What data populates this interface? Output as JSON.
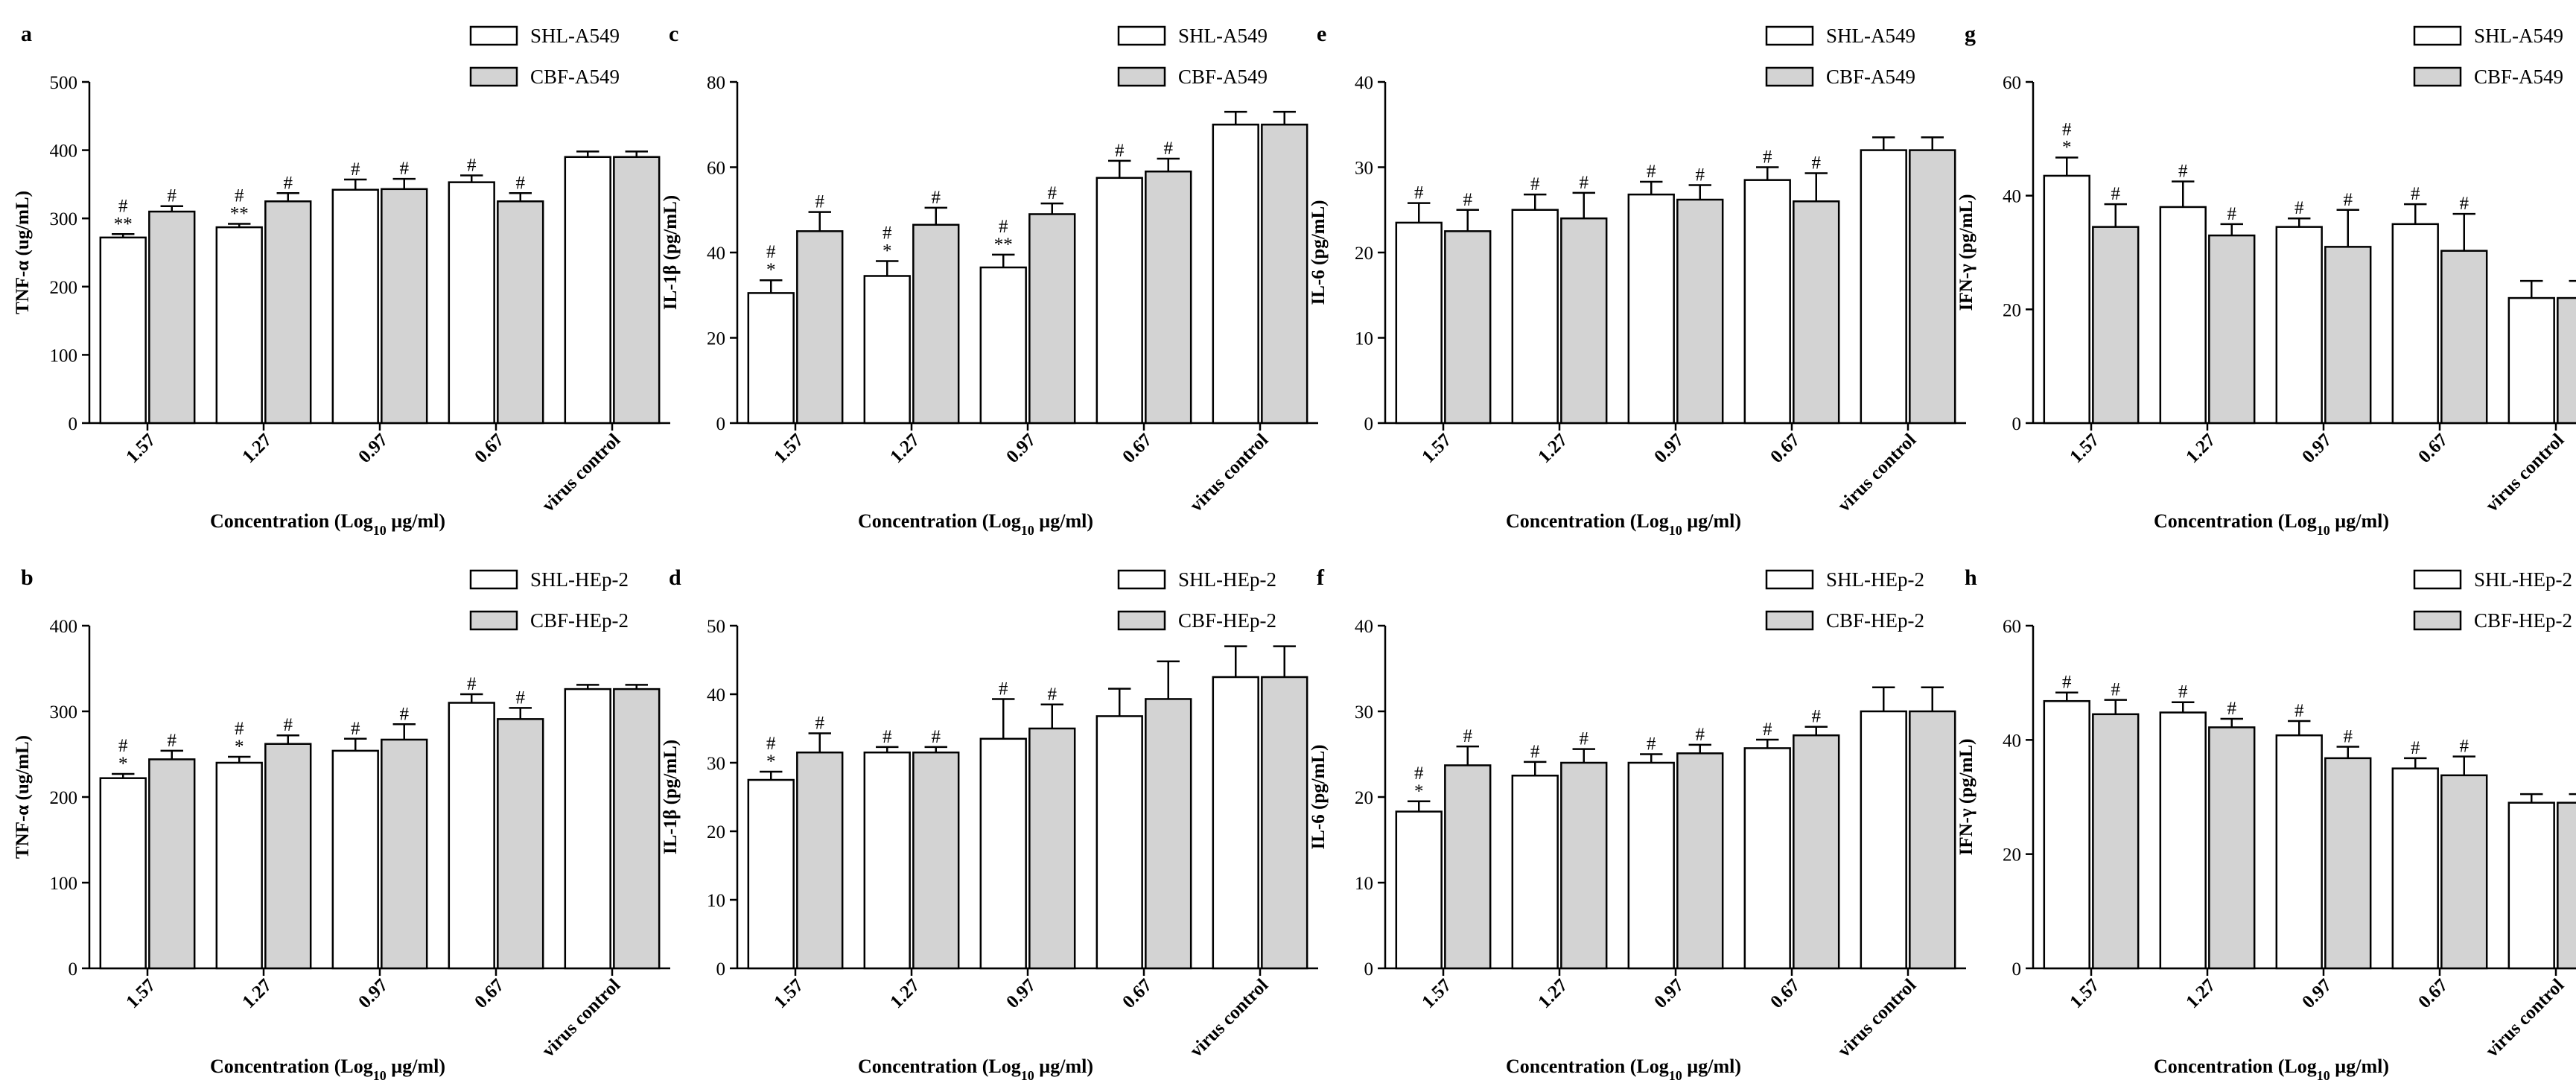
{
  "figure": {
    "xlabel_main": "Concentration (Log",
    "xlabel_sub": "10",
    "xlabel_unit": " µg/ml)"
  },
  "chart_data": [
    {
      "type": "bar",
      "panel": "a",
      "ylabel": "TNF-α  (ug/mL)",
      "ylim": [
        0,
        500
      ],
      "yticks": [
        0,
        100,
        200,
        300,
        400,
        500
      ],
      "categories": [
        "1.57",
        "1.27",
        "0.97",
        "0.67",
        "virus control"
      ],
      "series": [
        {
          "name": "SHL-A549",
          "color": "#ffffff",
          "values": [
            272,
            287,
            342,
            353,
            390
          ],
          "errors": [
            5,
            5,
            15,
            10,
            8
          ],
          "marks": [
            [
              "#",
              "**"
            ],
            [
              "#",
              "**"
            ],
            [
              "#"
            ],
            [
              "#"
            ],
            []
          ]
        },
        {
          "name": "CBF-A549",
          "color": "#d3d3d3",
          "values": [
            310,
            325,
            343,
            325,
            390
          ],
          "errors": [
            8,
            12,
            15,
            12,
            8
          ],
          "marks": [
            [
              "#"
            ],
            [
              "#"
            ],
            [
              "#"
            ],
            [
              "#"
            ],
            []
          ]
        }
      ]
    },
    {
      "type": "bar",
      "panel": "b",
      "ylabel": "TNF-α  (ug/mL)",
      "ylim": [
        0,
        400
      ],
      "yticks": [
        0,
        100,
        200,
        300,
        400
      ],
      "categories": [
        "1.57",
        "1.27",
        "0.97",
        "0.67",
        "virus control"
      ],
      "series": [
        {
          "name": "SHL-HEp-2",
          "color": "#ffffff",
          "values": [
            222,
            240,
            254,
            310,
            326
          ],
          "errors": [
            5,
            7,
            14,
            10,
            5
          ],
          "marks": [
            [
              "#",
              "*"
            ],
            [
              "#",
              "*"
            ],
            [
              "#"
            ],
            [
              "#"
            ],
            []
          ]
        },
        {
          "name": "CBF-HEp-2",
          "color": "#d3d3d3",
          "values": [
            244,
            262,
            267,
            291,
            326
          ],
          "errors": [
            10,
            10,
            18,
            13,
            5
          ],
          "marks": [
            [
              "#"
            ],
            [
              "#"
            ],
            [
              "#"
            ],
            [
              "#"
            ],
            []
          ]
        }
      ]
    },
    {
      "type": "bar",
      "panel": "c",
      "ylabel": "IL-1β (pg/mL)",
      "ylim": [
        0,
        80
      ],
      "yticks": [
        0,
        20,
        40,
        60,
        80
      ],
      "categories": [
        "1.57",
        "1.27",
        "0.97",
        "0.67",
        "virus control"
      ],
      "series": [
        {
          "name": "SHL-A549",
          "color": "#ffffff",
          "values": [
            30.5,
            34.5,
            36.5,
            57.5,
            70
          ],
          "errors": [
            3,
            3.5,
            3,
            4,
            3
          ],
          "marks": [
            [
              "#",
              "*"
            ],
            [
              "#",
              "*"
            ],
            [
              "#",
              "**"
            ],
            [
              "#"
            ],
            []
          ]
        },
        {
          "name": "CBF-A549",
          "color": "#d3d3d3",
          "values": [
            45,
            46.5,
            49,
            59,
            70
          ],
          "errors": [
            4.5,
            4,
            2.5,
            3,
            3
          ],
          "marks": [
            [
              "#"
            ],
            [
              "#"
            ],
            [
              "#"
            ],
            [
              "#"
            ],
            []
          ]
        }
      ]
    },
    {
      "type": "bar",
      "panel": "d",
      "ylabel": "IL-1β (pg/mL)",
      "ylim": [
        0,
        50
      ],
      "yticks": [
        0,
        10,
        20,
        30,
        40,
        50
      ],
      "categories": [
        "1.57",
        "1.27",
        "0.97",
        "0.67",
        "virus control"
      ],
      "series": [
        {
          "name": "SHL-HEp-2",
          "color": "#ffffff",
          "values": [
            27.5,
            31.5,
            33.5,
            36.8,
            42.5
          ],
          "errors": [
            1.2,
            0.8,
            5.8,
            4,
            4.5
          ],
          "marks": [
            [
              "#",
              "*"
            ],
            [
              "#"
            ],
            [
              "#"
            ],
            [],
            []
          ]
        },
        {
          "name": "CBF-HEp-2",
          "color": "#d3d3d3",
          "values": [
            31.5,
            31.5,
            35,
            39.3,
            42.5
          ],
          "errors": [
            2.8,
            0.8,
            3.5,
            5.5,
            4.5
          ],
          "marks": [
            [
              "#"
            ],
            [
              "#"
            ],
            [
              "#"
            ],
            [],
            []
          ]
        }
      ]
    },
    {
      "type": "bar",
      "panel": "e",
      "ylabel": "IL-6 (pg/mL)",
      "ylim": [
        0,
        40
      ],
      "yticks": [
        0,
        10,
        20,
        30,
        40
      ],
      "categories": [
        "1.57",
        "1.27",
        "0.97",
        "0.67",
        "virus control"
      ],
      "series": [
        {
          "name": "SHL-A549",
          "color": "#ffffff",
          "values": [
            23.5,
            25,
            26.8,
            28.5,
            32
          ],
          "errors": [
            2.3,
            1.8,
            1.5,
            1.5,
            1.5
          ],
          "marks": [
            [
              "#"
            ],
            [
              "#"
            ],
            [
              "#"
            ],
            [
              "#"
            ],
            []
          ]
        },
        {
          "name": "CBF-A549",
          "color": "#d3d3d3",
          "values": [
            22.5,
            24,
            26.2,
            26,
            32
          ],
          "errors": [
            2.5,
            3,
            1.7,
            3.3,
            1.5
          ],
          "marks": [
            [
              "#"
            ],
            [
              "#"
            ],
            [
              "#"
            ],
            [
              "#"
            ],
            []
          ]
        }
      ]
    },
    {
      "type": "bar",
      "panel": "f",
      "ylabel": "IL-6 (pg/mL)",
      "ylim": [
        0,
        40
      ],
      "yticks": [
        0,
        10,
        20,
        30,
        40
      ],
      "categories": [
        "1.57",
        "1.27",
        "0.97",
        "0.67",
        "virus control"
      ],
      "series": [
        {
          "name": "SHL-HEp-2",
          "color": "#ffffff",
          "values": [
            18.3,
            22.5,
            24,
            25.7,
            30
          ],
          "errors": [
            1.2,
            1.6,
            1,
            1,
            2.8
          ],
          "marks": [
            [
              "#",
              "*"
            ],
            [
              "#"
            ],
            [
              "#"
            ],
            [
              "#"
            ],
            []
          ]
        },
        {
          "name": "CBF-HEp-2",
          "color": "#d3d3d3",
          "values": [
            23.7,
            24,
            25.1,
            27.2,
            30
          ],
          "errors": [
            2.2,
            1.6,
            1,
            1,
            2.8
          ],
          "marks": [
            [
              "#"
            ],
            [
              "#"
            ],
            [
              "#"
            ],
            [
              "#"
            ],
            []
          ]
        }
      ]
    },
    {
      "type": "bar",
      "panel": "g",
      "ylabel": "IFN-γ (pg/mL)",
      "ylim": [
        0,
        60
      ],
      "yticks": [
        0,
        20,
        40,
        60
      ],
      "categories": [
        "1.57",
        "1.27",
        "0.97",
        "0.67",
        "virus control"
      ],
      "series": [
        {
          "name": "SHL-A549",
          "color": "#ffffff",
          "values": [
            43.5,
            38,
            34.5,
            35,
            22
          ],
          "errors": [
            3.2,
            4.5,
            1.5,
            3.5,
            3
          ],
          "marks": [
            [
              "#",
              "*"
            ],
            [
              "#"
            ],
            [
              "#"
            ],
            [
              "#"
            ],
            []
          ]
        },
        {
          "name": "CBF-A549",
          "color": "#d3d3d3",
          "values": [
            34.5,
            33,
            31,
            30.3,
            22
          ],
          "errors": [
            4,
            2,
            6.5,
            6.5,
            3
          ],
          "marks": [
            [
              "#"
            ],
            [
              "#"
            ],
            [
              "#"
            ],
            [
              "#"
            ],
            []
          ]
        }
      ]
    },
    {
      "type": "bar",
      "panel": "h",
      "ylabel": "IFN-γ (pg/mL)",
      "ylim": [
        0,
        60
      ],
      "yticks": [
        0,
        20,
        40,
        60
      ],
      "categories": [
        "1.57",
        "1.27",
        "0.97",
        "0.67",
        "virus control"
      ],
      "series": [
        {
          "name": "SHL-HEp-2",
          "color": "#ffffff",
          "values": [
            46.8,
            44.8,
            40.8,
            35,
            29
          ],
          "errors": [
            1.5,
            1.8,
            2.5,
            1.8,
            1.5
          ],
          "marks": [
            [
              "#"
            ],
            [
              "#"
            ],
            [
              "#"
            ],
            [
              "#"
            ],
            []
          ]
        },
        {
          "name": "CBF-HEp-2",
          "color": "#d3d3d3",
          "values": [
            44.5,
            42.2,
            36.8,
            33.8,
            29
          ],
          "errors": [
            2.5,
            1.5,
            2,
            3.3,
            1.5
          ],
          "marks": [
            [
              "#"
            ],
            [
              "#"
            ],
            [
              "#"
            ],
            [
              "#"
            ],
            []
          ]
        }
      ]
    }
  ]
}
